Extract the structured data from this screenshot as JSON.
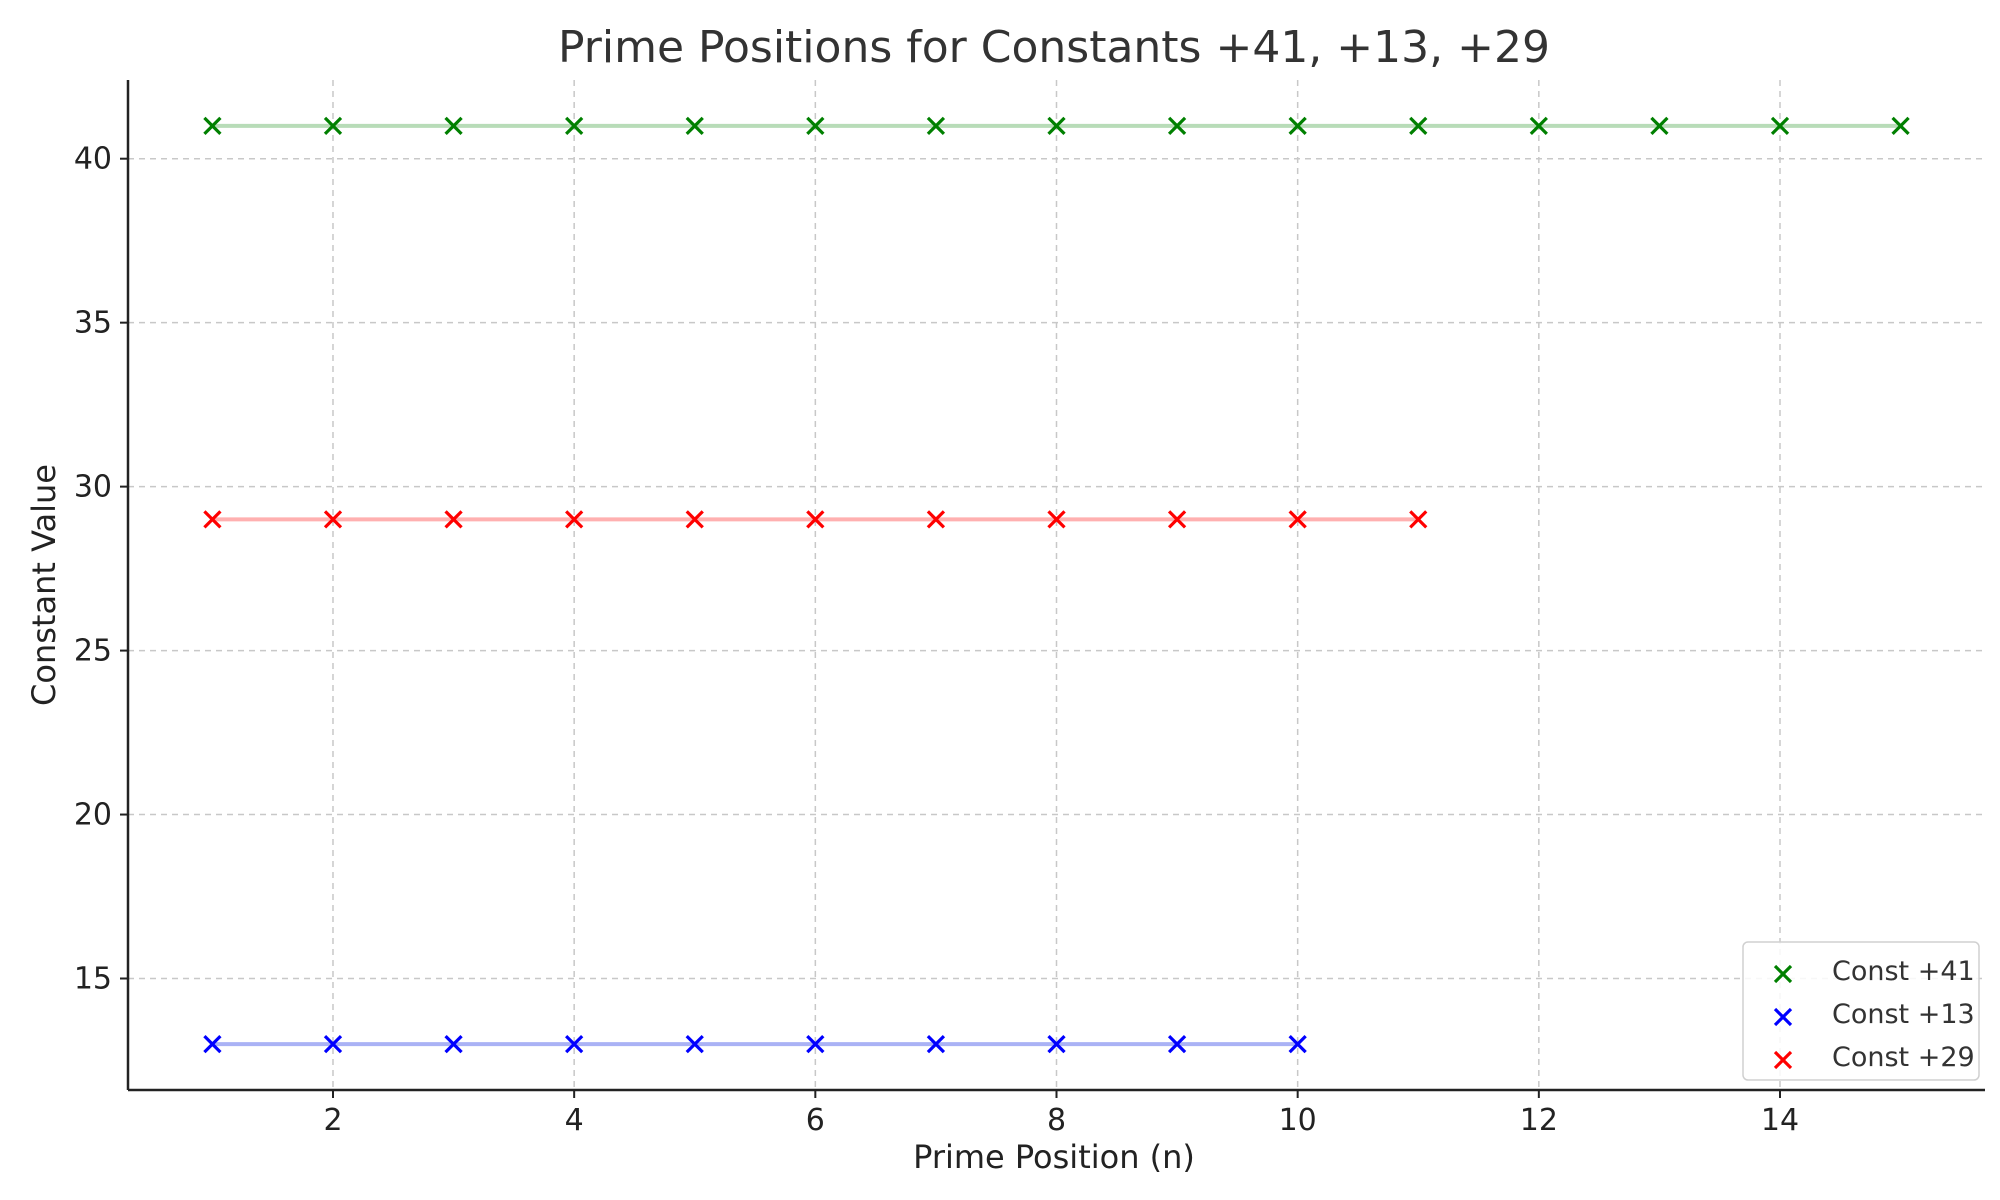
{
  "chart_data": {
    "type": "scatter",
    "title": "Prime Positions for Constants +41, +13, +29",
    "xlabel": "Prime Position (n)",
    "ylabel": "Constant Value",
    "xlim": [
      0.3,
      15.7
    ],
    "ylim": [
      11.6,
      42.4
    ],
    "xticks": [
      2,
      4,
      6,
      8,
      10,
      12,
      14
    ],
    "yticks": [
      15,
      20,
      25,
      30,
      35,
      40
    ],
    "grid": true,
    "legend_position": "lower-right",
    "marker": "x",
    "series": [
      {
        "name": "Const +41",
        "color": "#008000",
        "line_color": "#b8dcb8",
        "x": [
          1,
          2,
          3,
          4,
          5,
          6,
          7,
          8,
          9,
          10,
          11,
          12,
          13,
          14,
          15
        ],
        "y": [
          41,
          41,
          41,
          41,
          41,
          41,
          41,
          41,
          41,
          41,
          41,
          41,
          41,
          41,
          41
        ]
      },
      {
        "name": "Const +13",
        "color": "#0000ff",
        "line_color": "#aab2f5",
        "x": [
          1,
          2,
          3,
          4,
          5,
          6,
          7,
          8,
          9,
          10
        ],
        "y": [
          13,
          13,
          13,
          13,
          13,
          13,
          13,
          13,
          13,
          13
        ]
      },
      {
        "name": "Const +29",
        "color": "#ff0000",
        "line_color": "#ffb0b0",
        "x": [
          1,
          2,
          3,
          4,
          5,
          6,
          7,
          8,
          9,
          10,
          11
        ],
        "y": [
          29,
          29,
          29,
          29,
          29,
          29,
          29,
          29,
          29,
          29,
          29
        ]
      }
    ]
  }
}
